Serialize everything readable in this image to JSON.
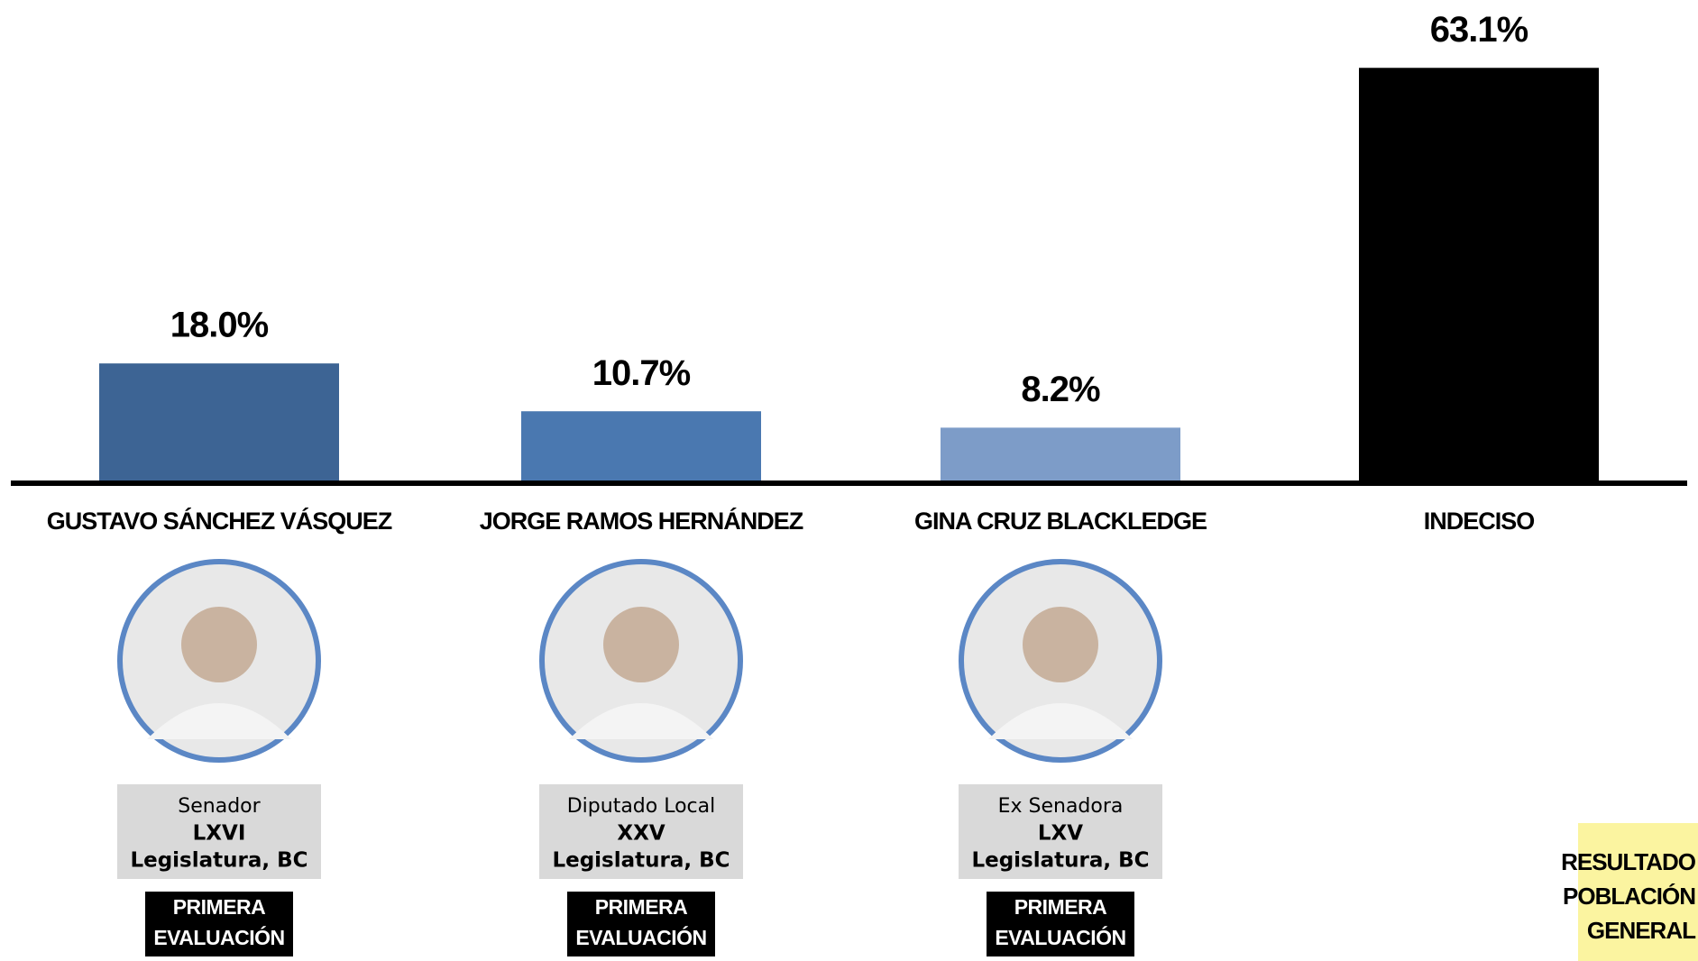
{
  "chart_data": {
    "type": "bar",
    "categories": [
      "GUSTAVO SÁNCHEZ VÁSQUEZ",
      "JORGE RAMOS HERNÁNDEZ",
      "GINA CRUZ BLACKLEDGE",
      "INDECISO"
    ],
    "values": [
      18.0,
      10.7,
      8.2,
      63.1
    ],
    "value_labels": [
      "18.0%",
      "10.7%",
      "8.2%",
      "63.1%"
    ],
    "colors": [
      "#3d6494",
      "#4a78b0",
      "#7d9cc8",
      "#000000"
    ]
  },
  "candidates": [
    {
      "info": [
        "Senador",
        "LXVI",
        "Legislatura, BC"
      ],
      "badge": [
        "PRIMERA",
        "EVALUACIÓN"
      ]
    },
    {
      "info": [
        "Diputado Local",
        "XXV",
        "Legislatura, BC"
      ],
      "badge": [
        "PRIMERA",
        "EVALUACIÓN"
      ]
    },
    {
      "info": [
        "Ex Senadora",
        "LXV",
        "Legislatura, BC"
      ],
      "badge": [
        "PRIMERA",
        "EVALUACIÓN"
      ]
    }
  ],
  "note": [
    "RESULTADO",
    "POBLACIÓN",
    "GENERAL"
  ]
}
